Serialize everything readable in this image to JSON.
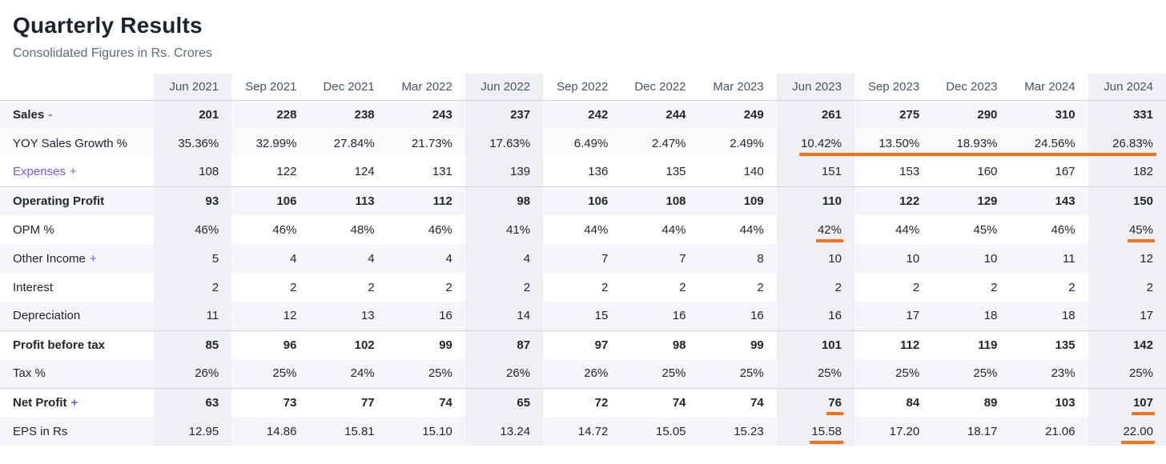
{
  "page": {
    "title": "Quarterly Results",
    "subtitle": "Consolidated Figures in Rs. Crores"
  },
  "colors": {
    "accent_orange": "#f97316",
    "expand_link_indigo": "#6a5cf5",
    "column_highlight": "#eff0f6",
    "row_stripe": "#f5f6f9"
  },
  "table": {
    "columns": [
      "Jun 2021",
      "Sep 2021",
      "Dec 2021",
      "Mar 2022",
      "Jun 2022",
      "Sep 2022",
      "Dec 2022",
      "Mar 2023",
      "Jun 2023",
      "Sep 2023",
      "Dec 2023",
      "Mar 2024",
      "Jun 2024"
    ],
    "highlighted_columns": [
      0,
      4,
      8,
      12
    ],
    "rows": [
      {
        "label": "Sales",
        "suffix": "-",
        "bold": true,
        "stripe": true,
        "expandable": true,
        "values": [
          "201",
          "228",
          "238",
          "243",
          "237",
          "242",
          "244",
          "249",
          "261",
          "275",
          "290",
          "310",
          "331"
        ]
      },
      {
        "label": "YOY Sales Growth %",
        "subtle": true,
        "values": [
          "35.36%",
          "32.99%",
          "27.84%",
          "21.73%",
          "17.63%",
          "6.49%",
          "2.47%",
          "2.49%",
          "10.42%",
          "13.50%",
          "18.93%",
          "24.56%",
          "26.83%"
        ],
        "underline_span": [
          8,
          12
        ]
      },
      {
        "label": "Expenses",
        "suffix": "+",
        "link": true,
        "expandable": true,
        "values": [
          "108",
          "122",
          "124",
          "131",
          "139",
          "136",
          "135",
          "140",
          "151",
          "153",
          "160",
          "167",
          "182"
        ]
      },
      {
        "label": "Operating Profit",
        "bold": true,
        "stripe": true,
        "strong_border": true,
        "values": [
          "93",
          "106",
          "113",
          "112",
          "98",
          "106",
          "108",
          "109",
          "110",
          "122",
          "129",
          "143",
          "150"
        ]
      },
      {
        "label": "OPM %",
        "values": [
          "46%",
          "46%",
          "48%",
          "46%",
          "41%",
          "44%",
          "44%",
          "44%",
          "42%",
          "44%",
          "45%",
          "46%",
          "45%"
        ],
        "underline_cells": [
          8,
          12
        ]
      },
      {
        "label": "Other Income",
        "suffix": "+",
        "stripe": true,
        "expandable": true,
        "values": [
          "5",
          "4",
          "4",
          "4",
          "4",
          "7",
          "7",
          "8",
          "10",
          "10",
          "10",
          "11",
          "12"
        ]
      },
      {
        "label": "Interest",
        "values": [
          "2",
          "2",
          "2",
          "2",
          "2",
          "2",
          "2",
          "2",
          "2",
          "2",
          "2",
          "2",
          "2"
        ]
      },
      {
        "label": "Depreciation",
        "stripe": true,
        "values": [
          "11",
          "12",
          "13",
          "16",
          "14",
          "15",
          "16",
          "16",
          "16",
          "17",
          "18",
          "18",
          "17"
        ]
      },
      {
        "label": "Profit before tax",
        "bold": true,
        "strong_border": true,
        "values": [
          "85",
          "96",
          "102",
          "99",
          "87",
          "97",
          "98",
          "99",
          "101",
          "112",
          "119",
          "135",
          "142"
        ]
      },
      {
        "label": "Tax %",
        "stripe": true,
        "values": [
          "26%",
          "25%",
          "24%",
          "25%",
          "26%",
          "26%",
          "25%",
          "25%",
          "25%",
          "25%",
          "25%",
          "23%",
          "25%"
        ]
      },
      {
        "label": "Net Profit",
        "suffix": "+",
        "bold": true,
        "strong_border": true,
        "expandable": true,
        "values": [
          "63",
          "73",
          "77",
          "74",
          "65",
          "72",
          "74",
          "74",
          "76",
          "84",
          "89",
          "103",
          "107"
        ],
        "underline_cells": [
          8,
          12
        ]
      },
      {
        "label": "EPS in Rs",
        "stripe": true,
        "values": [
          "12.95",
          "14.86",
          "15.81",
          "15.10",
          "13.24",
          "14.72",
          "15.05",
          "15.23",
          "15.58",
          "17.20",
          "18.17",
          "21.06",
          "22.00"
        ],
        "underline_cells": [
          8,
          12
        ]
      }
    ]
  }
}
